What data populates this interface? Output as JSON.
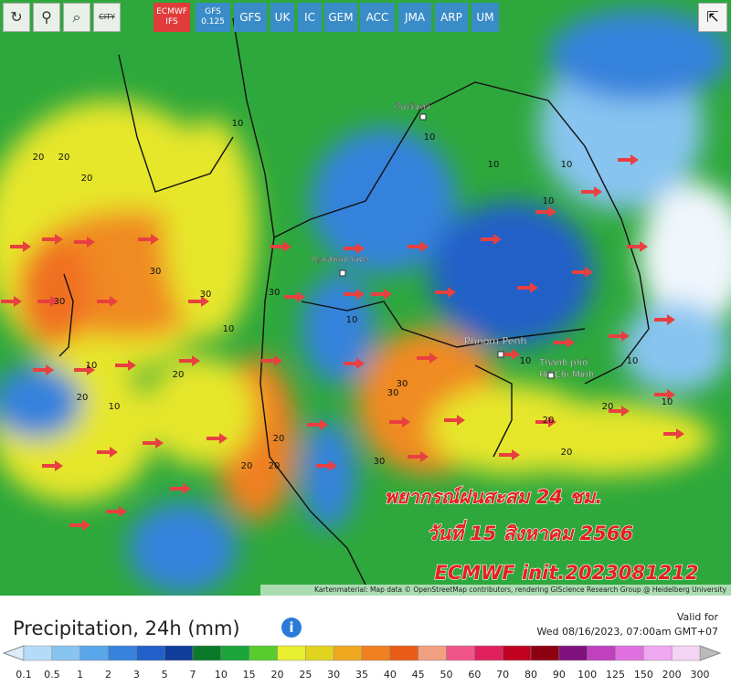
{
  "toolbar": {
    "models": [
      {
        "name": "ECMWF",
        "sub": "IFS"
      },
      {
        "name": "GFS",
        "sub": "0.125"
      },
      {
        "name": "GFS"
      },
      {
        "name": "UK"
      },
      {
        "name": "IC"
      },
      {
        "name": "GEM"
      },
      {
        "name": "ACC"
      },
      {
        "name": "JMA"
      },
      {
        "name": "ARP"
      },
      {
        "name": "UM"
      }
    ],
    "city": "CITY"
  },
  "map": {
    "places": [
      "Phnom Penh",
      "Thành phố",
      "Hồ Chí Minh",
      "กรุงเทพมหานคร",
      "เวียงจันทน์"
    ],
    "contour_labels": [
      20,
      20,
      20,
      30,
      30,
      30,
      30,
      20,
      20,
      10,
      10,
      10,
      10,
      10,
      10,
      10,
      30,
      30,
      20,
      20,
      10,
      10,
      20,
      20,
      10,
      10,
      10,
      30,
      20,
      20
    ],
    "overlay": [
      "พยากรณ์ฝนสะสม 24 ชม.",
      "วันที่ 15 สิงหาคม 2566",
      "ECMWF init.2023081212"
    ],
    "attribution": "Kartenmaterial: Map data © OpenStreetMap contributors, rendering GIScience Research Group @ Heidelberg University"
  },
  "footer": {
    "title": "Precipitation, 24h (mm)",
    "valid_label": "Valid for",
    "valid_time": "Wed 08/16/2023, 07:00am GMT+07"
  },
  "legend": {
    "labels": [
      0.1,
      0.5,
      1,
      2,
      3,
      5,
      7,
      10,
      15,
      20,
      25,
      30,
      35,
      40,
      45,
      50,
      60,
      70,
      80,
      90,
      100,
      125,
      150,
      200,
      300
    ],
    "colors": [
      "#b4dcf8",
      "#88c4f0",
      "#5aa6ea",
      "#3682dc",
      "#2060c8",
      "#103c9c",
      "#0a7a2a",
      "#1aa43a",
      "#58cc2c",
      "#e8ee30",
      "#e0d420",
      "#f0a820",
      "#f08020",
      "#e85c18",
      "#f0a080",
      "#f05488",
      "#e0205c",
      "#c00020",
      "#8c0010",
      "#80107c",
      "#c040c0",
      "#e070e0",
      "#f0a8f0",
      "#f4d4f4"
    ]
  }
}
